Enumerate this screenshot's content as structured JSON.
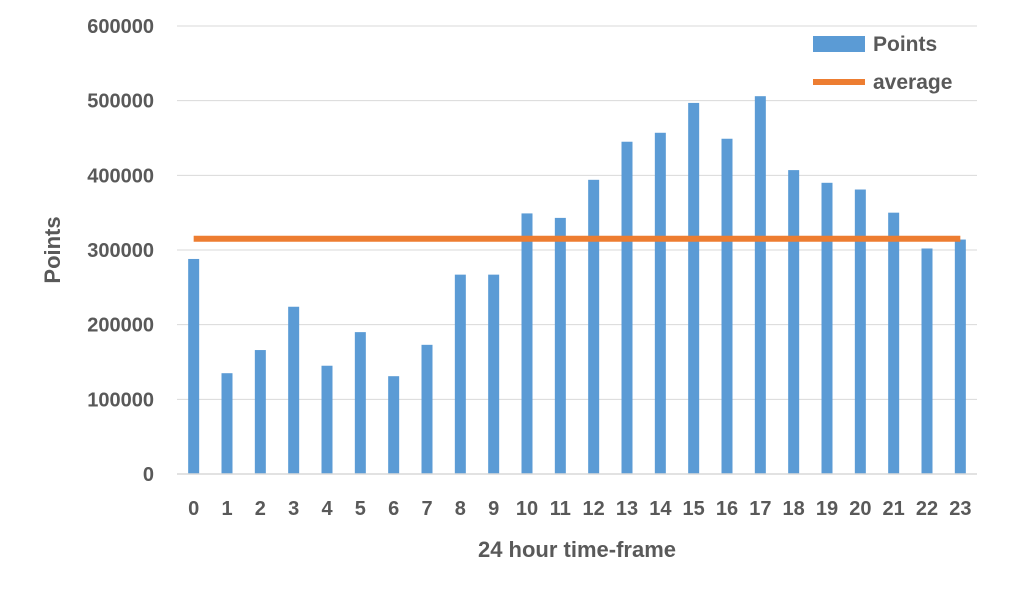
{
  "chart_data": {
    "type": "bar",
    "categories": [
      "0",
      "1",
      "2",
      "3",
      "4",
      "5",
      "6",
      "7",
      "8",
      "9",
      "10",
      "11",
      "12",
      "13",
      "14",
      "15",
      "16",
      "17",
      "18",
      "19",
      "20",
      "21",
      "22",
      "23"
    ],
    "series": [
      {
        "name": "Points",
        "type": "bar",
        "color": "#5B9BD5",
        "values": [
          288000,
          135000,
          166000,
          224000,
          145000,
          190000,
          131000,
          173000,
          267000,
          267000,
          349000,
          343000,
          394000,
          445000,
          457000,
          497000,
          449000,
          506000,
          407000,
          390000,
          381000,
          350000,
          302000,
          314000
        ]
      },
      {
        "name": "average",
        "type": "line",
        "color": "#ED7D31",
        "values": [
          315000,
          315000,
          315000,
          315000,
          315000,
          315000,
          315000,
          315000,
          315000,
          315000,
          315000,
          315000,
          315000,
          315000,
          315000,
          315000,
          315000,
          315000,
          315000,
          315000,
          315000,
          315000,
          315000,
          315000
        ]
      }
    ],
    "xlabel": "24 hour time-frame",
    "ylabel": "Points",
    "ylim": [
      0,
      600000
    ],
    "yticks": [
      "0",
      "100000",
      "200000",
      "300000",
      "400000",
      "500000",
      "600000"
    ],
    "grid": true,
    "legend_position": "top-right"
  }
}
